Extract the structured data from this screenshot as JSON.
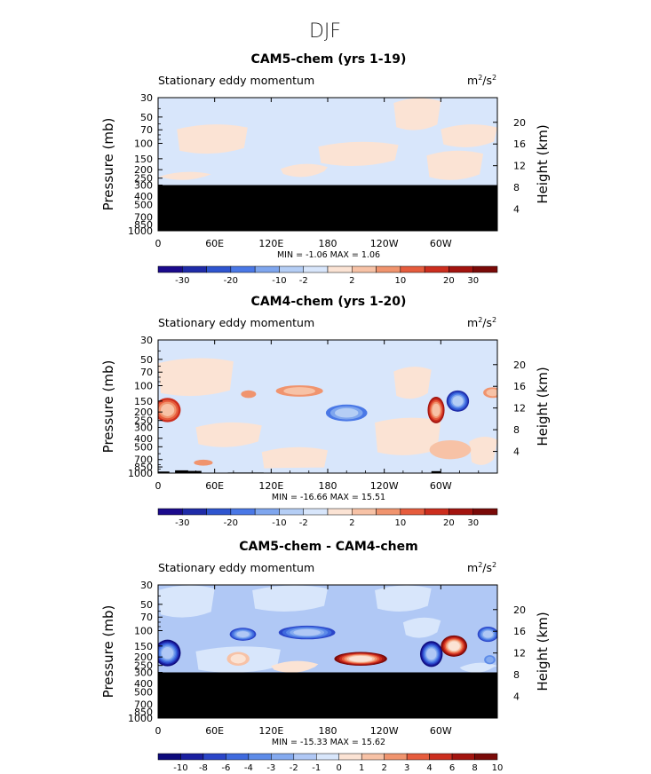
{
  "page": {
    "title": "DJF"
  },
  "colors": {
    "full_scale": [
      "#1b0a8c",
      "#1f2ba8",
      "#2f55cf",
      "#4a78e6",
      "#7fa6ee",
      "#b5cef5",
      "#d8e6fb",
      "#fbe3d4",
      "#f7c2a6",
      "#f0946e",
      "#e65c3d",
      "#cc2e1e",
      "#a3140f",
      "#7a0a08"
    ],
    "diff_scale": [
      "#0d0a7c",
      "#1a1fa0",
      "#2a45c8",
      "#3f6ade",
      "#5d8be8",
      "#84aaef",
      "#b0c8f5",
      "#d8e6fb",
      "#fbe3d4",
      "#f7c2a6",
      "#f0946e",
      "#e65c3d",
      "#cc2e1e",
      "#a3140f",
      "#7a0a08"
    ],
    "land": "#000000"
  },
  "panels": [
    {
      "title": "CAM5-chem (yrs 1-19)",
      "left_label": "Stationary eddy momentum",
      "units_base": "m",
      "units_exp1": "2",
      "units_mid": "/s",
      "units_exp2": "2",
      "y_axis_label": "Pressure (mb)",
      "y2_axis_label": "Height (km)",
      "stats": "MIN =  -1.06   MAX =   1.06",
      "colorbar_labels": [
        "-30",
        "-20",
        "-10",
        "-2",
        "2",
        "10",
        "20",
        "30"
      ]
    },
    {
      "title": "CAM4-chem (yrs 1-20)",
      "left_label": "Stationary eddy momentum",
      "units_base": "m",
      "units_exp1": "2",
      "units_mid": "/s",
      "units_exp2": "2",
      "y_axis_label": "Pressure (mb)",
      "y2_axis_label": "Height (km)",
      "stats": "MIN = -16.66   MAX =  15.51",
      "colorbar_labels": [
        "-30",
        "-20",
        "-10",
        "-2",
        "2",
        "10",
        "20",
        "30"
      ]
    },
    {
      "title": "CAM5-chem - CAM4-chem",
      "left_label": "Stationary eddy momentum",
      "units_base": "m",
      "units_exp1": "2",
      "units_mid": "/s",
      "units_exp2": "2",
      "y_axis_label": "Pressure (mb)",
      "y2_axis_label": "Height (km)",
      "stats": "MIN = -15.33   MAX =  15.62",
      "colorbar_labels": [
        "-10",
        "-8",
        "-6",
        "-4",
        "-3",
        "-2",
        "-1",
        "0",
        "1",
        "2",
        "3",
        "4",
        "6",
        "8",
        "10"
      ]
    }
  ],
  "chart_data": [
    {
      "type": "heatmap",
      "title": "CAM5-chem (yrs 1-19)",
      "subtitle": "Stationary eddy momentum",
      "units": "m2/s2",
      "xlabel": "",
      "ylabel": "Pressure (mb)",
      "y2label": "Height (km)",
      "x_ticks": [
        "0",
        "60E",
        "120E",
        "180",
        "120W",
        "60W"
      ],
      "y_ticks": [
        30,
        50,
        70,
        100,
        150,
        200,
        250,
        300,
        400,
        500,
        700,
        850,
        1000
      ],
      "y2_ticks": [
        20,
        16,
        12,
        8,
        4
      ],
      "ylim": [
        1000,
        30
      ],
      "y_scale": "log",
      "masked_below_mb": 300,
      "min": -1.06,
      "max": 1.06,
      "contour_levels": [
        -30,
        -20,
        -10,
        -2,
        2,
        10,
        20,
        30
      ]
    },
    {
      "type": "heatmap",
      "title": "CAM4-chem (yrs 1-20)",
      "subtitle": "Stationary eddy momentum",
      "units": "m2/s2",
      "xlabel": "",
      "ylabel": "Pressure (mb)",
      "y2label": "Height (km)",
      "x_ticks": [
        "0",
        "60E",
        "120E",
        "180",
        "120W",
        "60W"
      ],
      "y_ticks": [
        30,
        50,
        70,
        100,
        150,
        200,
        250,
        300,
        400,
        500,
        700,
        850,
        1000
      ],
      "y2_ticks": [
        20,
        16,
        12,
        8,
        4
      ],
      "ylim": [
        1000,
        30
      ],
      "y_scale": "log",
      "min": -16.66,
      "max": 15.51,
      "contour_levels": [
        -30,
        -20,
        -10,
        -2,
        2,
        10,
        20,
        30
      ]
    },
    {
      "type": "heatmap",
      "title": "CAM5-chem - CAM4-chem",
      "subtitle": "Stationary eddy momentum",
      "units": "m2/s2",
      "xlabel": "",
      "ylabel": "Pressure (mb)",
      "y2label": "Height (km)",
      "x_ticks": [
        "0",
        "60E",
        "120E",
        "180",
        "120W",
        "60W"
      ],
      "y_ticks": [
        30,
        50,
        70,
        100,
        150,
        200,
        250,
        300,
        400,
        500,
        700,
        850,
        1000
      ],
      "y2_ticks": [
        20,
        16,
        12,
        8,
        4
      ],
      "ylim": [
        1000,
        30
      ],
      "y_scale": "log",
      "masked_below_mb": 300,
      "min": -15.33,
      "max": 15.62,
      "contour_levels": [
        -10,
        -8,
        -6,
        -4,
        -3,
        -2,
        -1,
        0,
        1,
        2,
        3,
        4,
        6,
        8,
        10
      ]
    }
  ]
}
